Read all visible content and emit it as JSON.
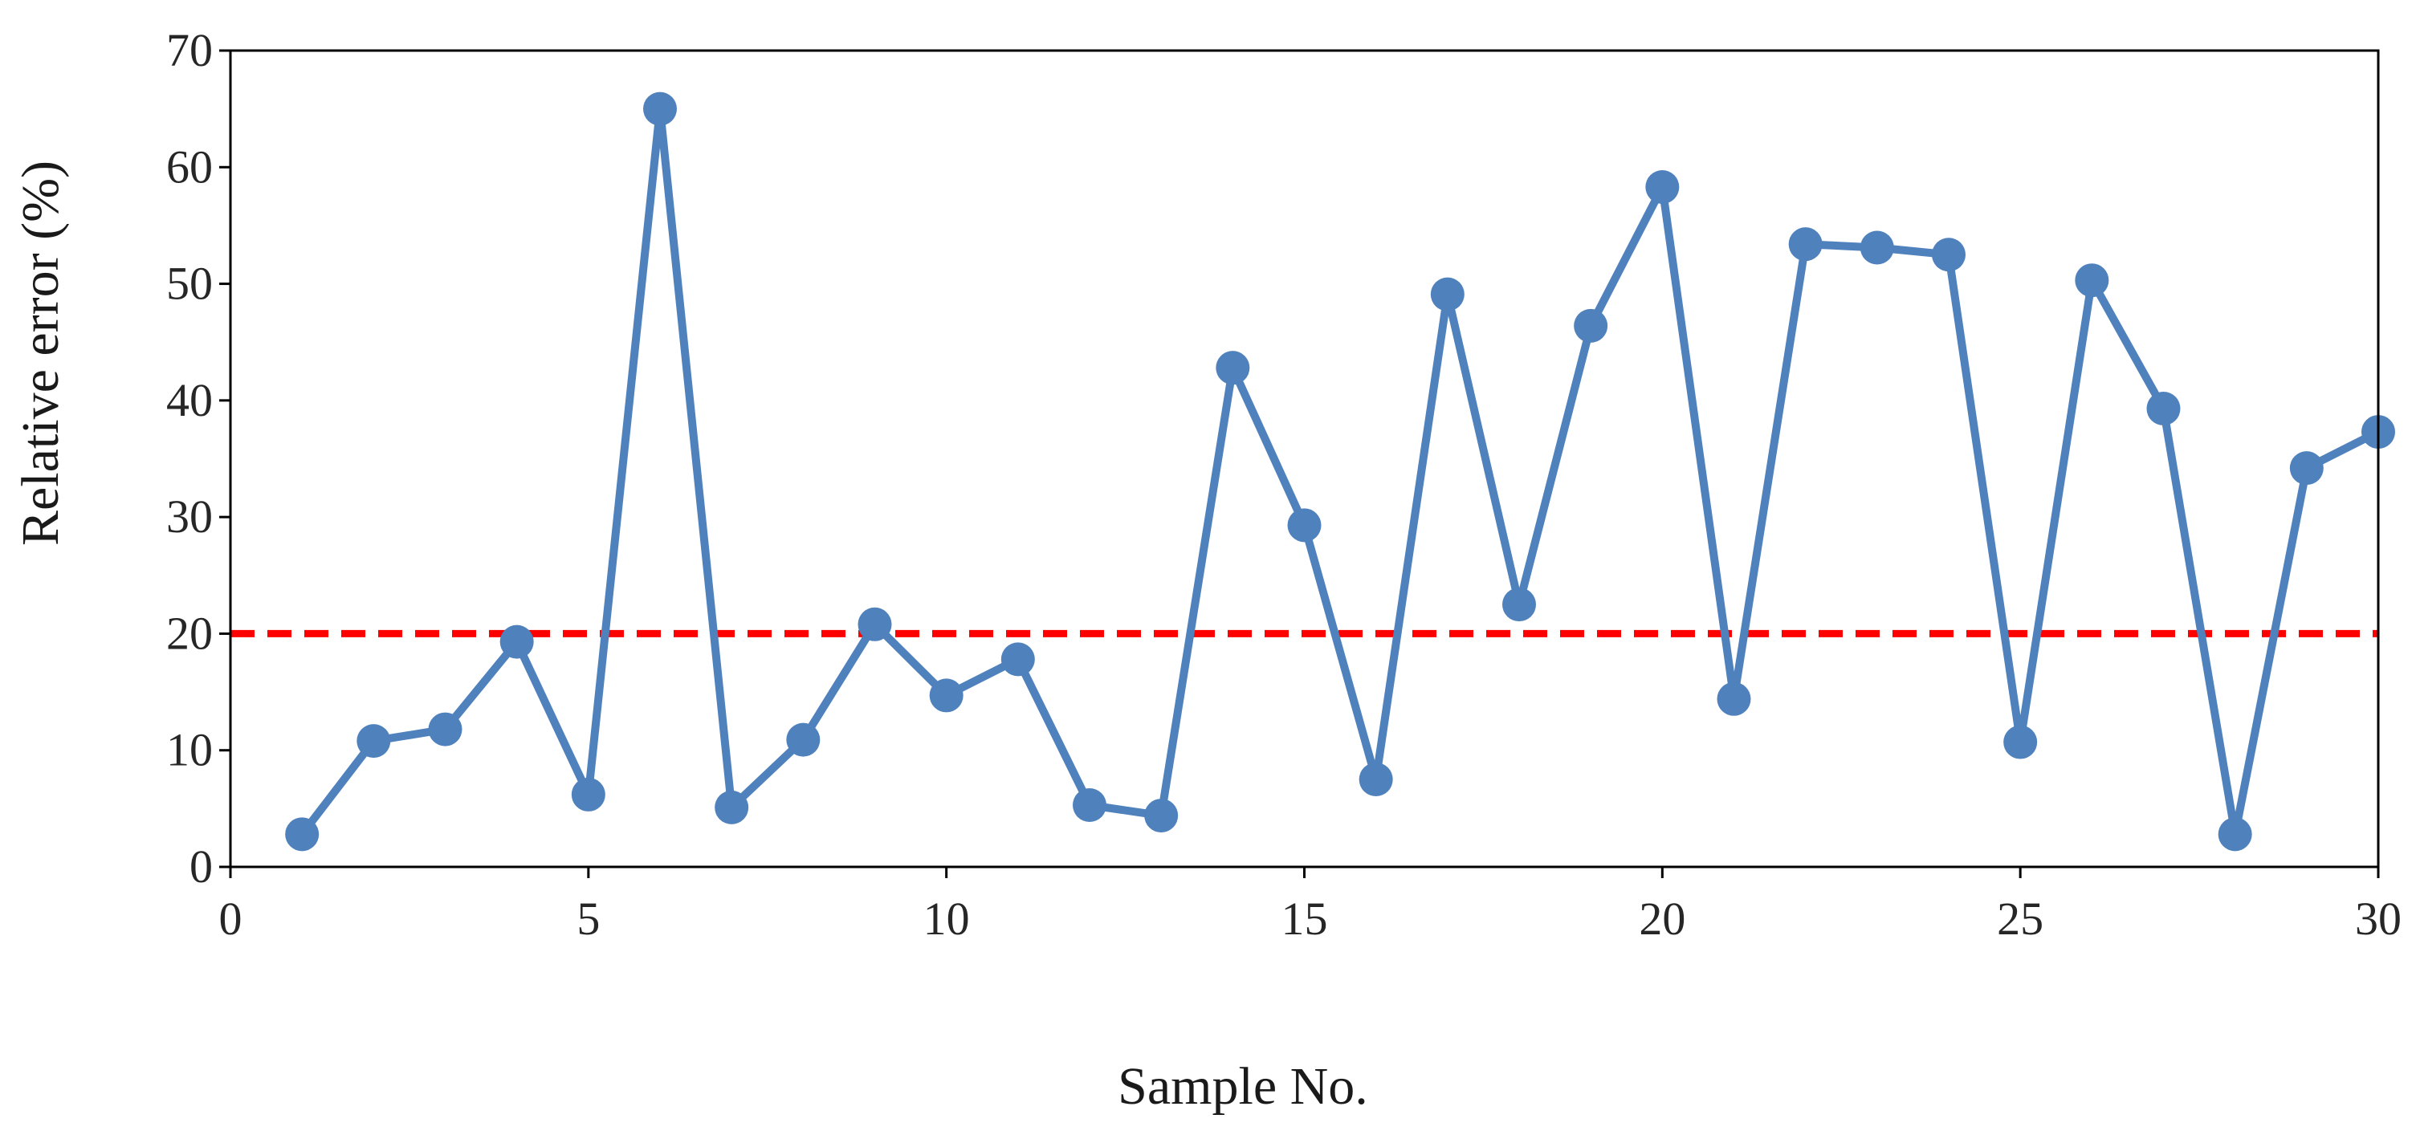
{
  "chart_data": {
    "type": "line",
    "title": "",
    "xlabel": "Sample No.",
    "ylabel": "Relative error (%)",
    "xlim": [
      0,
      30
    ],
    "ylim": [
      0,
      70
    ],
    "xticks": [
      "0",
      "5",
      "10",
      "15",
      "20",
      "25",
      "30"
    ],
    "yticks": [
      "0",
      "10",
      "20",
      "30",
      "40",
      "50",
      "60",
      "70"
    ],
    "grid": false,
    "legend": "none",
    "series": [
      {
        "color": "#4f81bd",
        "marker": "circle",
        "x": [
          1,
          2,
          3,
          4,
          5,
          6,
          7,
          8,
          9,
          10,
          11,
          12,
          13,
          14,
          15,
          16,
          17,
          18,
          19,
          20,
          21,
          22,
          23,
          24,
          25,
          26,
          27,
          28,
          29,
          30
        ],
        "values": [
          2.8,
          10.8,
          11.8,
          19.3,
          6.2,
          65.0,
          5.1,
          10.9,
          20.8,
          14.7,
          17.8,
          5.3,
          4.4,
          42.8,
          29.3,
          7.5,
          49.1,
          22.5,
          46.4,
          58.3,
          14.4,
          53.4,
          53.1,
          52.5,
          10.7,
          50.3,
          39.3,
          2.8,
          34.2,
          37.3
        ]
      }
    ],
    "reference_line": {
      "y": 20,
      "color": "#ff0000",
      "style": "dashed"
    }
  }
}
